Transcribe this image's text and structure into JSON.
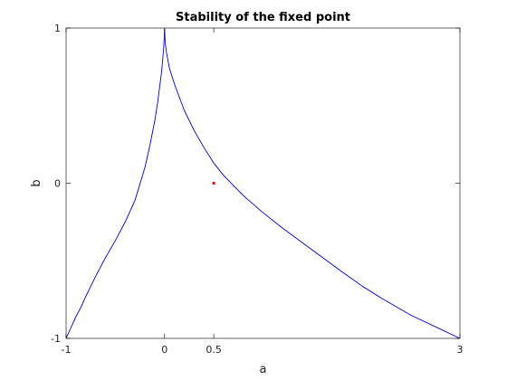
{
  "chart_data": {
    "type": "line",
    "title": "Stability of the fixed point",
    "xlabel": "a",
    "ylabel": "b",
    "xlim": [
      -1,
      3
    ],
    "ylim": [
      -1,
      1
    ],
    "xticks": [
      -1,
      0,
      0.5,
      3
    ],
    "yticks": [
      -1,
      0,
      1
    ],
    "grid": false,
    "series": [
      {
        "color": "#0000cc",
        "x": [
          -1,
          -0.95,
          -0.9,
          -0.85,
          -0.8,
          -0.7,
          -0.6,
          -0.5,
          -0.4,
          -0.3,
          -0.2,
          -0.15,
          -0.1,
          -0.07,
          -0.05,
          -0.03,
          -0.02,
          -0.01,
          -0.005,
          0
        ],
        "y": [
          -1,
          -0.93,
          -0.86,
          -0.8,
          -0.73,
          -0.6,
          -0.48,
          -0.37,
          -0.25,
          -0.11,
          0.1,
          0.24,
          0.4,
          0.52,
          0.62,
          0.72,
          0.79,
          0.86,
          0.92,
          1
        ]
      },
      {
        "color": "#0000cc",
        "x": [
          0,
          0.005,
          0.01,
          0.02,
          0.05,
          0.1,
          0.2,
          0.3,
          0.4,
          0.5,
          0.6,
          0.8,
          1.0,
          1.2,
          1.5,
          1.8,
          2.0,
          2.2,
          2.5,
          2.8,
          3
        ],
        "y": [
          1,
          0.93,
          0.89,
          0.84,
          0.74,
          0.64,
          0.47,
          0.34,
          0.23,
          0.13,
          0.05,
          -0.08,
          -0.19,
          -0.29,
          -0.43,
          -0.57,
          -0.66,
          -0.74,
          -0.85,
          -0.94,
          -1
        ]
      }
    ],
    "points": [
      {
        "x": 0.5,
        "y": 0,
        "color": "#ff0000"
      }
    ]
  }
}
